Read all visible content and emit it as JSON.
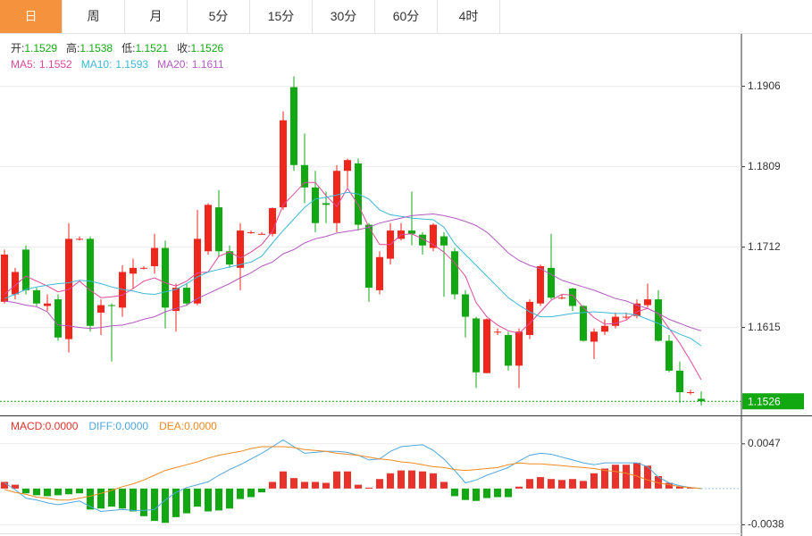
{
  "tabs": {
    "items": [
      "日",
      "周",
      "月",
      "5分",
      "15分",
      "30分",
      "60分",
      "4时"
    ],
    "active": 0
  },
  "chart_data": [
    {
      "type": "candlestick",
      "ohlc_labels": [
        "开:",
        "高:",
        "低:",
        "收:"
      ],
      "up_color": "#f0261d",
      "down_color": "#12a812",
      "open": [
        1.1646,
        1.1655,
        1.1709,
        1.166,
        1.1641,
        1.1649,
        1.1601,
        1.1722,
        1.1722,
        1.1633,
        1.1642,
        1.1639,
        1.168,
        1.1687,
        1.1689,
        1.1711,
        1.1635,
        1.1663,
        1.1644,
        1.1707,
        1.176,
        1.1707,
        1.1687,
        1.173,
        1.1728,
        1.1728,
        1.176,
        1.1905,
        1.1811,
        1.1784,
        1.1765,
        1.1741,
        1.1804,
        1.1813,
        1.1739,
        1.166,
        1.1698,
        1.1722,
        1.1732,
        1.1727,
        1.1711,
        1.1725,
        1.1707,
        1.1655,
        1.1626,
        1.156,
        1.161,
        1.1606,
        1.1569,
        1.1606,
        1.1644,
        1.1687,
        1.1651,
        1.1662,
        1.1641,
        1.1598,
        1.161,
        1.1617,
        1.1628,
        1.1629,
        1.1642,
        1.1649,
        1.1599,
        1.1563,
        1.1537,
        1.1529
      ],
      "high": [
        1.1709,
        1.1687,
        1.1714,
        1.1663,
        1.1655,
        1.1655,
        1.1741,
        1.1725,
        1.1725,
        1.1649,
        1.1644,
        1.169,
        1.1698,
        1.1689,
        1.1728,
        1.172,
        1.1668,
        1.1668,
        1.1757,
        1.1765,
        1.1781,
        1.1714,
        1.1741,
        1.1732,
        1.173,
        1.176,
        1.1876,
        1.1918,
        1.1849,
        1.1804,
        1.1779,
        1.1811,
        1.1819,
        1.1819,
        1.1741,
        1.1707,
        1.1741,
        1.1741,
        1.1779,
        1.173,
        1.1741,
        1.173,
        1.1711,
        1.166,
        1.1628,
        1.1626,
        1.1614,
        1.161,
        1.1614,
        1.1649,
        1.1691,
        1.1728,
        1.1655,
        1.1663,
        1.1642,
        1.1614,
        1.1625,
        1.1633,
        1.1633,
        1.1649,
        1.1668,
        1.166,
        1.1606,
        1.1574,
        1.154,
        1.1538
      ],
      "low": [
        1.1644,
        1.1649,
        1.1655,
        1.1641,
        1.1635,
        1.1599,
        1.1585,
        1.172,
        1.161,
        1.1606,
        1.1574,
        1.1628,
        1.1662,
        1.1685,
        1.168,
        1.1614,
        1.161,
        1.1641,
        1.1642,
        1.1703,
        1.17,
        1.1687,
        1.166,
        1.1728,
        1.1727,
        1.1725,
        1.1757,
        1.1804,
        1.1765,
        1.173,
        1.1741,
        1.173,
        1.1784,
        1.1732,
        1.1646,
        1.1655,
        1.1691,
        1.172,
        1.1714,
        1.1703,
        1.1707,
        1.1652,
        1.1649,
        1.1603,
        1.1542,
        1.156,
        1.1606,
        1.1563,
        1.1542,
        1.1601,
        1.1641,
        1.1649,
        1.1649,
        1.1635,
        1.1598,
        1.1577,
        1.1606,
        1.1614,
        1.1625,
        1.1626,
        1.1639,
        1.1598,
        1.1561,
        1.1524,
        1.1534,
        1.1521
      ],
      "close": [
        1.1703,
        1.1682,
        1.166,
        1.1644,
        1.1644,
        1.1603,
        1.1722,
        1.1722,
        1.1617,
        1.1642,
        1.1641,
        1.1682,
        1.1687,
        1.1687,
        1.1711,
        1.1639,
        1.1663,
        1.1644,
        1.1722,
        1.1763,
        1.1707,
        1.1691,
        1.1732,
        1.173,
        1.1728,
        1.1759,
        1.1865,
        1.1811,
        1.1784,
        1.1741,
        1.1763,
        1.1804,
        1.1817,
        1.1739,
        1.1663,
        1.17,
        1.1732,
        1.1732,
        1.1728,
        1.1714,
        1.1739,
        1.1714,
        1.1655,
        1.1628,
        1.1561,
        1.1625,
        1.161,
        1.1569,
        1.161,
        1.1646,
        1.1689,
        1.1651,
        1.1651,
        1.1641,
        1.1599,
        1.161,
        1.1617,
        1.1628,
        1.1628,
        1.1644,
        1.1649,
        1.1599,
        1.1563,
        1.1537,
        1.1537,
        1.1526
      ],
      "series": [
        {
          "name": "MA5:",
          "color": "#e0489a",
          "values": [
            1.1655,
            1.1666,
            1.1677,
            1.1671,
            1.1665,
            1.1658,
            1.1661,
            1.1671,
            1.166,
            1.1651,
            1.1652,
            1.1654,
            1.1662,
            1.1671,
            1.1675,
            1.1669,
            1.1665,
            1.1671,
            1.1681,
            1.1682,
            1.1701,
            1.1706,
            1.1699,
            1.1706,
            1.1715,
            1.1731,
            1.1763,
            1.1776,
            1.179,
            1.179,
            1.1774,
            1.1761,
            1.1783,
            1.1763,
            1.1736,
            1.1715,
            1.1715,
            1.1727,
            1.1728,
            1.1722,
            1.1715,
            1.1706,
            1.1693,
            1.1677,
            1.1645,
            1.1628,
            1.1618,
            1.1611,
            1.1608,
            1.162,
            1.1634,
            1.1648,
            1.1655,
            1.1654,
            1.1639,
            1.1627,
            1.1619,
            1.162,
            1.1624,
            1.1634,
            1.1638,
            1.1632,
            1.1614,
            1.1596,
            1.1575,
            1.1552
          ]
        },
        {
          "name": "MA10:",
          "color": "#3bb8d6",
          "values": [
            1.165,
            1.1655,
            1.1661,
            1.1664,
            1.1666,
            1.1668,
            1.1669,
            1.1672,
            1.1671,
            1.1668,
            1.1664,
            1.1661,
            1.1659,
            1.1656,
            1.1655,
            1.1658,
            1.1661,
            1.1668,
            1.1676,
            1.1682,
            1.1685,
            1.1688,
            1.1691,
            1.1694,
            1.1701,
            1.1717,
            1.1732,
            1.1746,
            1.176,
            1.177,
            1.1772,
            1.1775,
            1.1778,
            1.1776,
            1.177,
            1.1757,
            1.1751,
            1.1749,
            1.1747,
            1.1746,
            1.1745,
            1.1736,
            1.1716,
            1.1703,
            1.169,
            1.1677,
            1.1664,
            1.1651,
            1.1642,
            1.1634,
            1.1628,
            1.1628,
            1.163,
            1.1632,
            1.1633,
            1.1634,
            1.1633,
            1.1632,
            1.1632,
            1.163,
            1.1625,
            1.162,
            1.1613,
            1.1607,
            1.1602,
            1.1593
          ]
        },
        {
          "name": "MA20:",
          "color": "#b459c2",
          "values": [
            1.1647,
            1.1645,
            1.1642,
            1.164,
            1.1634,
            1.1618,
            1.1617,
            1.1615,
            1.1614,
            1.1615,
            1.1617,
            1.1618,
            1.1621,
            1.1625,
            1.1628,
            1.1634,
            1.1638,
            1.1642,
            1.165,
            1.1656,
            1.1662,
            1.1668,
            1.1675,
            1.1681,
            1.1689,
            1.1694,
            1.1704,
            1.1709,
            1.1717,
            1.1722,
            1.1725,
            1.1729,
            1.1731,
            1.1733,
            1.1736,
            1.1741,
            1.1744,
            1.1747,
            1.175,
            1.1751,
            1.1752,
            1.175,
            1.1747,
            1.1743,
            1.1738,
            1.173,
            1.1718,
            1.1705,
            1.1696,
            1.169,
            1.1686,
            1.1679,
            1.1672,
            1.1668,
            1.1664,
            1.166,
            1.1655,
            1.165,
            1.1647,
            1.1642,
            1.1638,
            1.1632,
            1.1625,
            1.162,
            1.1615,
            1.1611
          ]
        }
      ],
      "ylim": [
        1.1509,
        1.1967
      ],
      "yticks": [
        1.1615,
        1.1712,
        1.1809,
        1.1906
      ],
      "grid": true
    },
    {
      "type": "macd",
      "series": [
        {
          "name": "MACD:",
          "kind": "bar",
          "color": "#e8322b",
          "down_color": "#12a812",
          "readout": "0.0000",
          "values": [
            0.0007,
            0.0004,
            -0.0005,
            -0.0007,
            -0.0008,
            -0.0007,
            -0.0006,
            -0.0005,
            -0.0022,
            -0.0021,
            -0.0019,
            -0.0021,
            -0.0024,
            -0.0029,
            -0.0034,
            -0.0036,
            -0.003,
            -0.0026,
            -0.0019,
            -0.0024,
            -0.0023,
            -0.0021,
            -0.0011,
            -0.0009,
            -0.0004,
            0.0007,
            0.0018,
            0.0011,
            0.0007,
            0.0007,
            0.0006,
            0.0018,
            0.0018,
            0.0004,
            0.0001,
            0.001,
            0.0016,
            0.0019,
            0.0019,
            0.0018,
            0.0016,
            0.0007,
            -0.0008,
            -0.0012,
            -0.0013,
            -0.001,
            -0.0009,
            -0.0009,
            0.0002,
            0.001,
            0.0012,
            0.001,
            0.0009,
            0.001,
            0.0008,
            0.0016,
            0.0021,
            0.0025,
            0.0025,
            0.0027,
            0.0024,
            0.0013,
            0.0006,
            0.0002,
            0.0001,
            0
          ]
        },
        {
          "name": "DIFF:",
          "kind": "line",
          "color": "#4ea7e0",
          "readout": "0.0000",
          "values": [
            0.0006,
            -0.0001,
            -0.001,
            -0.0012,
            -0.0015,
            -0.0017,
            -0.0015,
            -0.0013,
            -0.0019,
            -0.0024,
            -0.0023,
            -0.0022,
            -0.0023,
            -0.0023,
            -0.0022,
            -0.0012,
            -0.0004,
            0.0001,
            0.0004,
            0.0007,
            0.0014,
            0.002,
            0.0025,
            0.0031,
            0.0037,
            0.0044,
            0.0051,
            0.0044,
            0.0037,
            0.0038,
            0.0039,
            0.0039,
            0.0038,
            0.0035,
            0.003,
            0.0031,
            0.0039,
            0.0044,
            0.0045,
            0.0046,
            0.004,
            0.0031,
            0.0019,
            0.0006,
            0.0009,
            0.0014,
            0.0018,
            0.0022,
            0.0029,
            0.0035,
            0.0037,
            0.0036,
            0.0033,
            0.003,
            0.0027,
            0.0025,
            0.0027,
            0.0027,
            0.0027,
            0.0027,
            0.0023,
            0.0012,
            0.0006,
            0.0003,
            0.0001,
            0
          ]
        },
        {
          "name": "DEA:",
          "kind": "line",
          "color": "#f08a24",
          "readout": "0.0000",
          "values": [
            -0.0001,
            -0.0004,
            -0.0006,
            -0.0009,
            -0.001,
            -0.0012,
            -0.0012,
            -0.001,
            -0.0008,
            -0.0005,
            -0.0002,
            0.0002,
            0.0005,
            0.0009,
            0.0014,
            0.0019,
            0.0022,
            0.0025,
            0.0028,
            0.0032,
            0.0035,
            0.0037,
            0.0039,
            0.0042,
            0.0044,
            0.0044,
            0.0044,
            0.0043,
            0.0041,
            0.004,
            0.0039,
            0.0037,
            0.0036,
            0.0035,
            0.0033,
            0.0031,
            0.003,
            0.0028,
            0.0027,
            0.0025,
            0.0023,
            0.0022,
            0.002,
            0.0019,
            0.002,
            0.0021,
            0.0022,
            0.0025,
            0.0027,
            0.0026,
            0.0026,
            0.0025,
            0.0024,
            0.0023,
            0.0022,
            0.0021,
            0.0019,
            0.0018,
            0.0016,
            0.0013,
            0.0009,
            0.0006,
            0.0004,
            0.0002,
            0.0001,
            0
          ]
        }
      ],
      "ylim": [
        -0.0047,
        0.0074
      ],
      "yticks": [
        -0.0038,
        0.0047
      ]
    }
  ]
}
